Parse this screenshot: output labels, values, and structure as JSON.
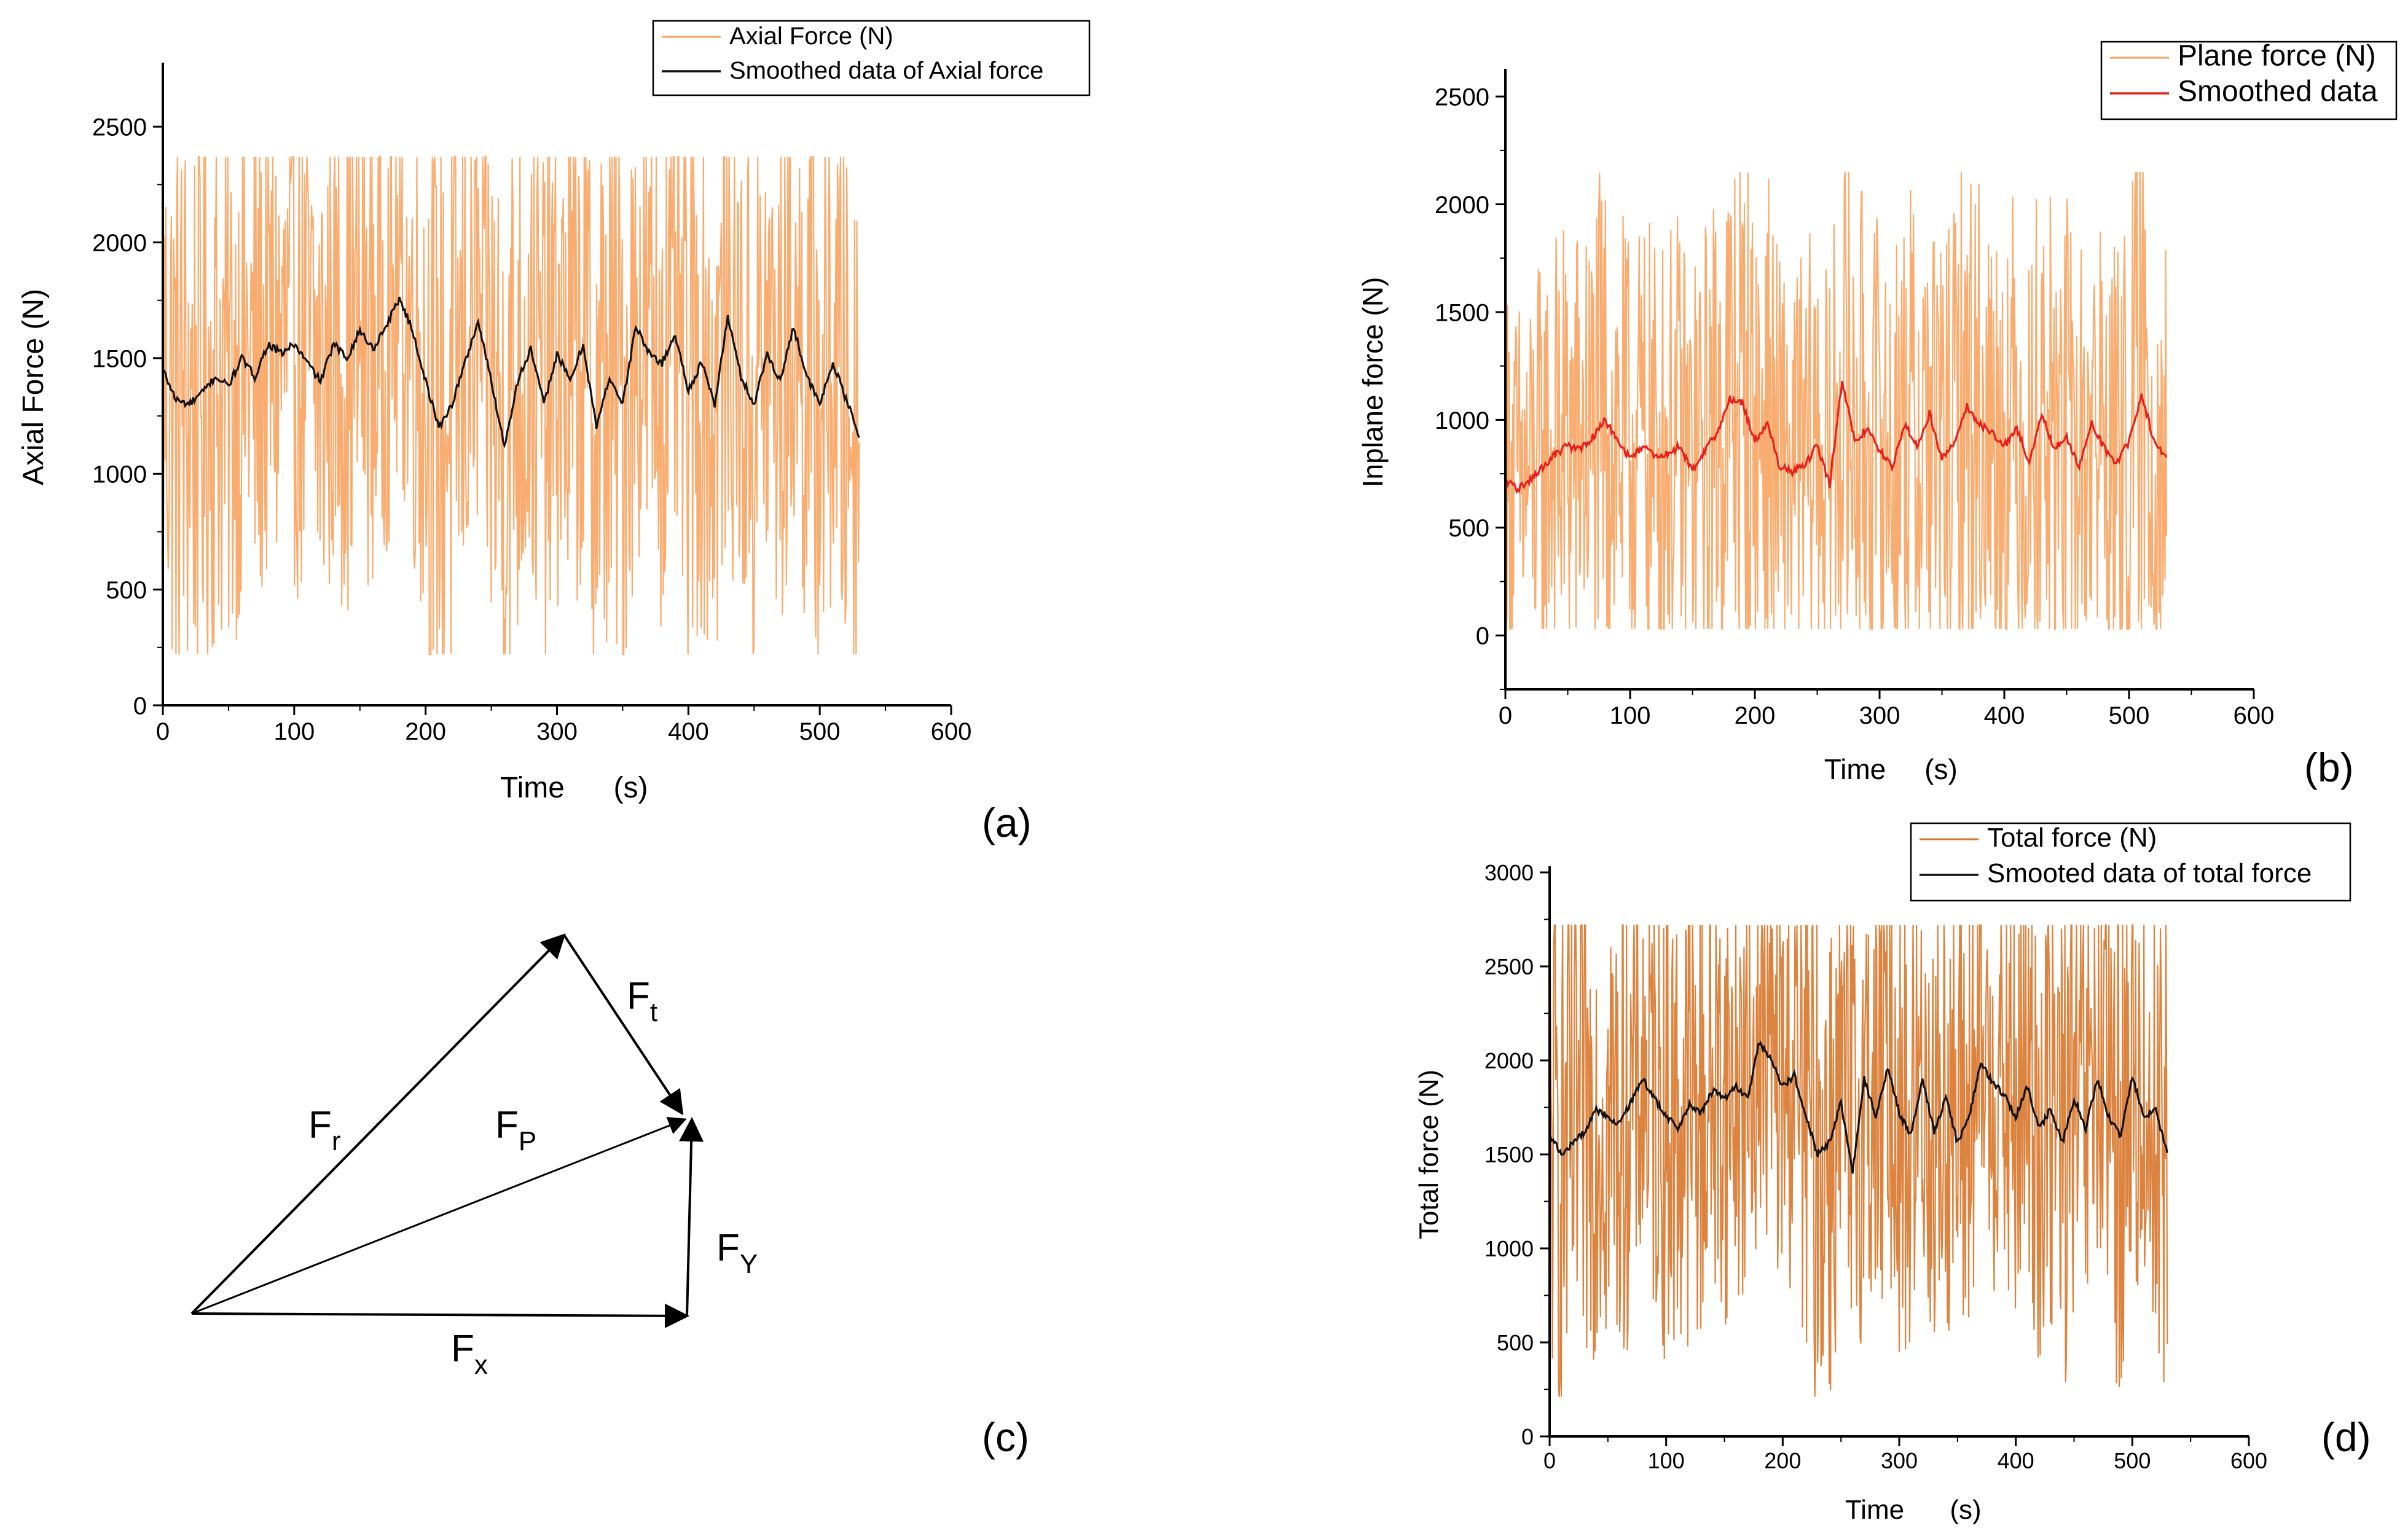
{
  "colors": {
    "background": "#ffffff",
    "axis": "#000000",
    "raw_light_orange": "#f7a35f",
    "raw_dark_orange": "#d8762a",
    "smooth_black": "#111111",
    "smooth_red": "#e8201b"
  },
  "chart_data": [
    {
      "id": "a",
      "type": "line",
      "panel_label": "(a)",
      "xlabel": "Time",
      "xunit": "(s)",
      "ylabel": "Axial Force (N)",
      "xlim": [
        0,
        600
      ],
      "ylim": [
        0,
        2750
      ],
      "xticks": [
        0,
        100,
        200,
        300,
        400,
        500,
        600
      ],
      "yticks": [
        0,
        500,
        1000,
        1500,
        2000,
        2500
      ],
      "legend_position": "top-right",
      "series": [
        {
          "name": "Axial Force (N)",
          "kind": "raw",
          "color": "#f7a35f",
          "x_range": [
            0,
            530
          ],
          "n_points": 900,
          "min": 220,
          "max": 2370,
          "mean": 1420
        },
        {
          "name": "Smoothed data of Axial force",
          "kind": "smoothed",
          "color": "#111111",
          "x": [
            0,
            10,
            20,
            30,
            40,
            50,
            60,
            70,
            80,
            90,
            100,
            110,
            120,
            130,
            140,
            150,
            160,
            170,
            180,
            190,
            200,
            210,
            220,
            230,
            240,
            250,
            260,
            270,
            280,
            290,
            300,
            310,
            320,
            330,
            340,
            350,
            360,
            370,
            380,
            390,
            400,
            410,
            420,
            430,
            440,
            450,
            460,
            470,
            480,
            490,
            500,
            510,
            520,
            530
          ],
          "y": [
            1450,
            1320,
            1300,
            1350,
            1420,
            1380,
            1500,
            1420,
            1560,
            1520,
            1560,
            1480,
            1400,
            1560,
            1500,
            1620,
            1540,
            1640,
            1760,
            1620,
            1400,
            1200,
            1300,
            1480,
            1660,
            1400,
            1120,
            1400,
            1540,
            1300,
            1520,
            1400,
            1560,
            1200,
            1420,
            1300,
            1640,
            1520,
            1480,
            1600,
            1360,
            1480,
            1300,
            1680,
            1420,
            1300,
            1520,
            1400,
            1640,
            1420,
            1300,
            1480,
            1320,
            1170
          ]
        }
      ]
    },
    {
      "id": "b",
      "type": "line",
      "panel_label": "(b)",
      "xlabel": "Time",
      "xunit": "(s)",
      "ylabel": "Inplane force (N)",
      "xlim": [
        0,
        600
      ],
      "ylim": [
        -250,
        2600
      ],
      "xticks": [
        0,
        100,
        200,
        300,
        400,
        500,
        600
      ],
      "yticks": [
        0,
        500,
        1000,
        1500,
        2000,
        2500
      ],
      "legend_position": "top-right",
      "series": [
        {
          "name": "Plane force (N)",
          "kind": "raw",
          "color": "#f7a35f",
          "x_range": [
            0,
            530
          ],
          "n_points": 900,
          "min": 30,
          "max": 2150,
          "mean": 880
        },
        {
          "name": "Smoothed data",
          "kind": "smoothed",
          "color": "#e8201b",
          "x": [
            0,
            10,
            20,
            30,
            40,
            50,
            60,
            70,
            80,
            90,
            100,
            110,
            120,
            130,
            140,
            150,
            160,
            170,
            180,
            190,
            200,
            210,
            220,
            230,
            240,
            250,
            260,
            270,
            280,
            290,
            300,
            310,
            320,
            330,
            340,
            350,
            360,
            370,
            380,
            390,
            400,
            410,
            420,
            430,
            440,
            450,
            460,
            470,
            480,
            490,
            500,
            510,
            520,
            530
          ],
          "y": [
            720,
            680,
            720,
            780,
            840,
            880,
            860,
            920,
            1000,
            900,
            820,
            880,
            830,
            840,
            880,
            760,
            860,
            940,
            1100,
            1080,
            900,
            980,
            780,
            760,
            790,
            880,
            700,
            1180,
            900,
            960,
            860,
            780,
            980,
            880,
            1030,
            820,
            900,
            1060,
            980,
            940,
            880,
            960,
            800,
            1020,
            870,
            920,
            780,
            980,
            870,
            800,
            900,
            1120,
            900,
            830
          ]
        }
      ]
    },
    {
      "id": "c",
      "type": "diagram",
      "panel_label": "(c)",
      "vectors": [
        {
          "name": "F_r",
          "label_main": "F",
          "label_sub": "r"
        },
        {
          "name": "F_t",
          "label_main": "F",
          "label_sub": "t"
        },
        {
          "name": "F_P",
          "label_main": "F",
          "label_sub": "P"
        },
        {
          "name": "F_Y",
          "label_main": "F",
          "label_sub": "Y"
        },
        {
          "name": "F_x",
          "label_main": "F",
          "label_sub": "x"
        }
      ]
    },
    {
      "id": "d",
      "type": "line",
      "panel_label": "(d)",
      "xlabel": "Time",
      "xunit": "(s)",
      "ylabel": "Total force (N)",
      "xlim": [
        0,
        600
      ],
      "ylim": [
        0,
        3000
      ],
      "xticks": [
        0,
        100,
        200,
        300,
        400,
        500,
        600
      ],
      "yticks": [
        0,
        500,
        1000,
        1500,
        2000,
        2500,
        3000
      ],
      "legend_position": "top-right",
      "series": [
        {
          "name": "Total force (N)",
          "kind": "raw",
          "color": "#d8762a",
          "x_range": [
            0,
            530
          ],
          "n_points": 900,
          "min": 210,
          "max": 2720,
          "mean": 1720
        },
        {
          "name": "Smooted data of total force",
          "kind": "smoothed",
          "color": "#111111",
          "x": [
            0,
            10,
            20,
            30,
            40,
            50,
            60,
            70,
            80,
            90,
            100,
            110,
            120,
            130,
            140,
            150,
            160,
            170,
            180,
            190,
            200,
            210,
            220,
            230,
            240,
            250,
            260,
            270,
            280,
            290,
            300,
            310,
            320,
            330,
            340,
            350,
            360,
            370,
            380,
            390,
            400,
            410,
            420,
            430,
            440,
            450,
            460,
            470,
            480,
            490,
            500,
            510,
            520,
            530
          ],
          "y": [
            1600,
            1500,
            1560,
            1620,
            1740,
            1700,
            1660,
            1780,
            1900,
            1800,
            1700,
            1640,
            1760,
            1720,
            1840,
            1800,
            1860,
            1800,
            2100,
            2000,
            1860,
            1920,
            1700,
            1500,
            1560,
            1780,
            1400,
            1900,
            1700,
            1960,
            1720,
            1600,
            1900,
            1620,
            1800,
            1560,
            1700,
            2000,
            1880,
            1820,
            1700,
            1860,
            1640,
            1740,
            1560,
            1800,
            1640,
            1900,
            1700,
            1600,
            1920,
            1700,
            1740,
            1500
          ]
        }
      ]
    }
  ]
}
